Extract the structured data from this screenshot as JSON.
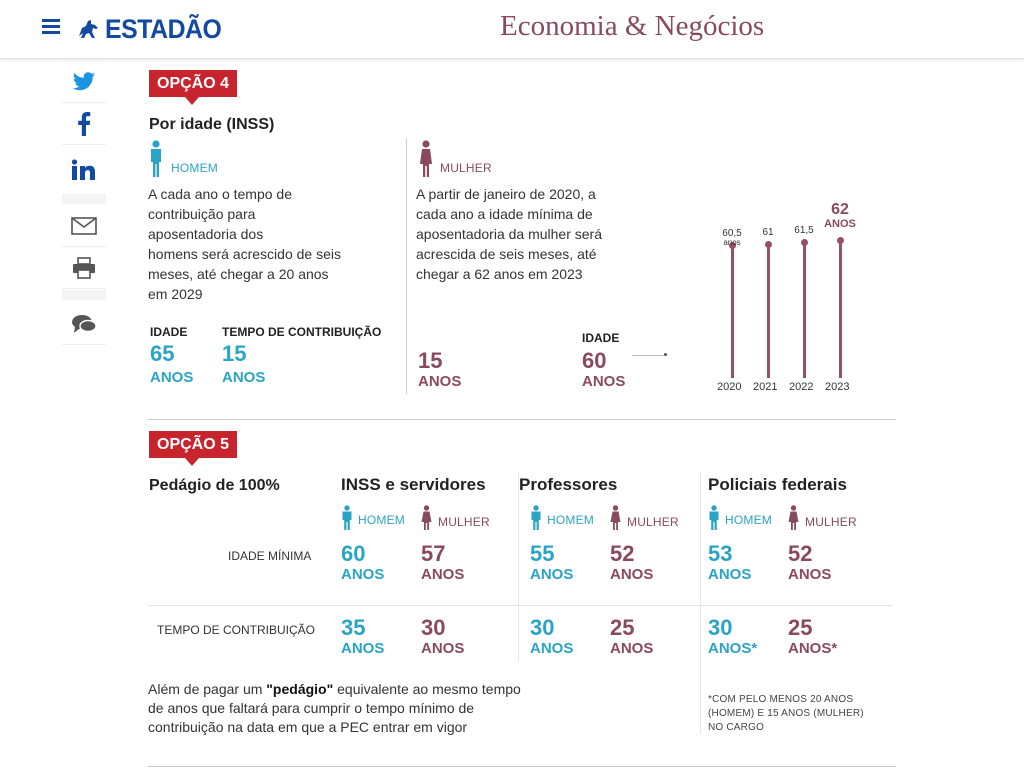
{
  "header": {
    "brand": "ESTADÃO",
    "section": "Economia & Negócios"
  },
  "share": {
    "items": [
      "twitter-icon",
      "facebook-icon",
      "linkedin-icon",
      "email-icon",
      "print-icon",
      "comment-icon"
    ]
  },
  "colors": {
    "brand": "#124aa0",
    "man": "#2aa4c4",
    "woman": "#8a4a5e",
    "tag": "#c8242e"
  },
  "option4": {
    "tag": "OPÇÃO 4",
    "title": "Por idade (INSS)",
    "man_label": "HOMEM",
    "man_text": [
      "A cada ano o tempo de",
      "contribuição para",
      "aposentadoria dos",
      "homens será acrescido de seis",
      "meses, até chegar a 20 anos",
      "em 2029"
    ],
    "idade_label": "IDADE",
    "tempo_label": "TEMPO DE CONTRIBUIÇÃO",
    "man_idade": "65",
    "man_tempo": "15",
    "anos": "ANOS",
    "woman_label": "MULHER",
    "woman_text": [
      "A partir de janeiro de 2020, a",
      "cada ano a idade mínima de",
      "aposentadoria da mulher será",
      "acrescida de seis meses, até",
      "chegar a 62 anos em 2023"
    ],
    "woman_tempo": "15",
    "woman_idade_label": "IDADE",
    "woman_idade": "60"
  },
  "chart_data": {
    "type": "bar",
    "title": "",
    "categories": [
      "2020",
      "2021",
      "2022",
      "2023"
    ],
    "values": [
      60.5,
      61,
      61.5,
      62
    ],
    "value_labels": [
      "60,5",
      "61",
      "61,5",
      "62"
    ],
    "unit_labels": [
      "anos",
      "",
      "",
      "ANOS"
    ],
    "ylim": [
      0,
      62
    ]
  },
  "option5": {
    "tag": "OPÇÃO 5",
    "title": "Pedágio de 100%",
    "row_idade": "IDADE MÍNIMA",
    "row_tempo": "TEMPO DE CONTRIBUIÇÃO",
    "groups": [
      {
        "name": "INSS e servidores",
        "man_label": "HOMEM",
        "woman_label": "MULHER",
        "idade_h": "60",
        "idade_m": "57",
        "tempo_h": "35",
        "tempo_m": "30",
        "anos_h": "ANOS",
        "anos_m": "ANOS",
        "tanos_h": "ANOS",
        "tanos_m": "ANOS"
      },
      {
        "name": "Professores",
        "man_label": "HOMEM",
        "woman_label": "MULHER",
        "idade_h": "55",
        "idade_m": "52",
        "tempo_h": "30",
        "tempo_m": "25",
        "anos_h": "ANOS",
        "anos_m": "ANOS",
        "tanos_h": "ANOS",
        "tanos_m": "ANOS"
      },
      {
        "name": "Policiais federais",
        "man_label": "HOMEM",
        "woman_label": "MULHER",
        "idade_h": "53",
        "idade_m": "52",
        "tempo_h": "30",
        "tempo_m": "25",
        "anos_h": "ANOS",
        "anos_m": "ANOS",
        "tanos_h": "ANOS*",
        "tanos_m": "ANOS*"
      }
    ],
    "footer_pre": "Além de pagar um ",
    "footer_bold": "\"pedágio\"",
    "footer_post": " equivalente ao mesmo tempo",
    "footer_line2": "de anos que faltará para cumprir o tempo mínimo de",
    "footer_line3": "contribuição na data em que a PEC entrar em vigor",
    "note": [
      "*COM PELO MENOS 20 ANOS",
      "(HOMEM) E 15 ANOS (MULHER)",
      "NO CARGO"
    ]
  }
}
